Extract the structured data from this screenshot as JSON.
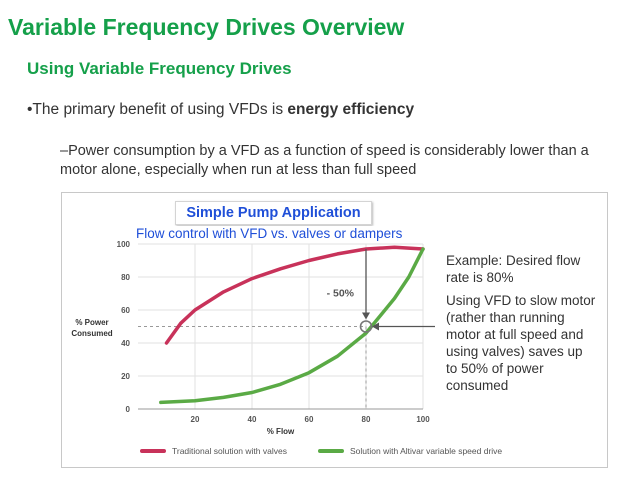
{
  "slide": {
    "title": "Variable Frequency Drives Overview",
    "subtitle": "Using Variable Frequency Drives",
    "bullet1_prefix": "•The primary benefit of using VFDs is ",
    "bullet1_bold": "energy efficiency",
    "bullet2": "–Power consumption by a VFD as a function of speed is considerably lower than a motor alone, especially when run at less than full speed"
  },
  "figure": {
    "note_line1": "Example: Desired flow rate is 80%",
    "note_line2": "Using VFD to slow motor (rather than running motor at full speed and using valves) saves up to 50% of power consumed"
  },
  "chart_data": {
    "type": "line",
    "title": "Simple Pump Application",
    "subtitle": "Flow control with VFD vs. valves or dampers",
    "xlabel": "% Flow",
    "ylabel": "% Power Consumed",
    "xlim": [
      0,
      100
    ],
    "ylim": [
      0,
      100
    ],
    "x_ticks": [
      20,
      40,
      60,
      80,
      100
    ],
    "y_ticks": [
      0,
      20,
      40,
      60,
      80,
      100
    ],
    "grid": true,
    "annotation": "- 50%",
    "marker": {
      "x": 80,
      "y": 50
    },
    "legend_position": "bottom",
    "series": [
      {
        "name": "Traditional solution with valves",
        "color": "#c8325a",
        "x": [
          10,
          15,
          20,
          30,
          40,
          50,
          60,
          70,
          80,
          90,
          100
        ],
        "y": [
          40,
          52,
          60,
          71,
          79,
          85,
          90,
          94,
          97,
          98,
          97
        ]
      },
      {
        "name": "Solution with Altivar variable speed drive",
        "color": "#5aaa45",
        "x": [
          8,
          20,
          30,
          40,
          50,
          60,
          70,
          80,
          90,
          95,
          100
        ],
        "y": [
          4,
          5,
          7,
          10,
          15,
          22,
          32,
          46,
          67,
          80,
          97
        ]
      }
    ]
  }
}
